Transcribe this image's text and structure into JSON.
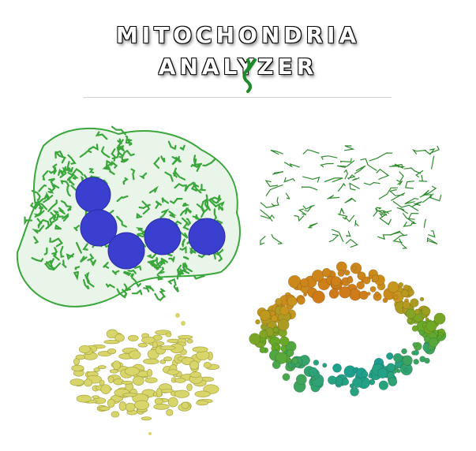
{
  "title": {
    "line1": "MITOCHONDRIA",
    "line2": "ANALYZER"
  },
  "colors": {
    "network_green": "#3aa63c",
    "nucleus_blue": "#3a3fd0",
    "skeleton_green": "#2e8b2e",
    "volume_yellow": "#d8d66a",
    "accent_logo_green": "#1f8a2a"
  },
  "panels": {
    "cell_network": "cell-with-nuclei-render",
    "skeleton": "skeleton-render",
    "surface_volume": "yellow-volume-render",
    "colored_network": "color-coded-network-render"
  }
}
